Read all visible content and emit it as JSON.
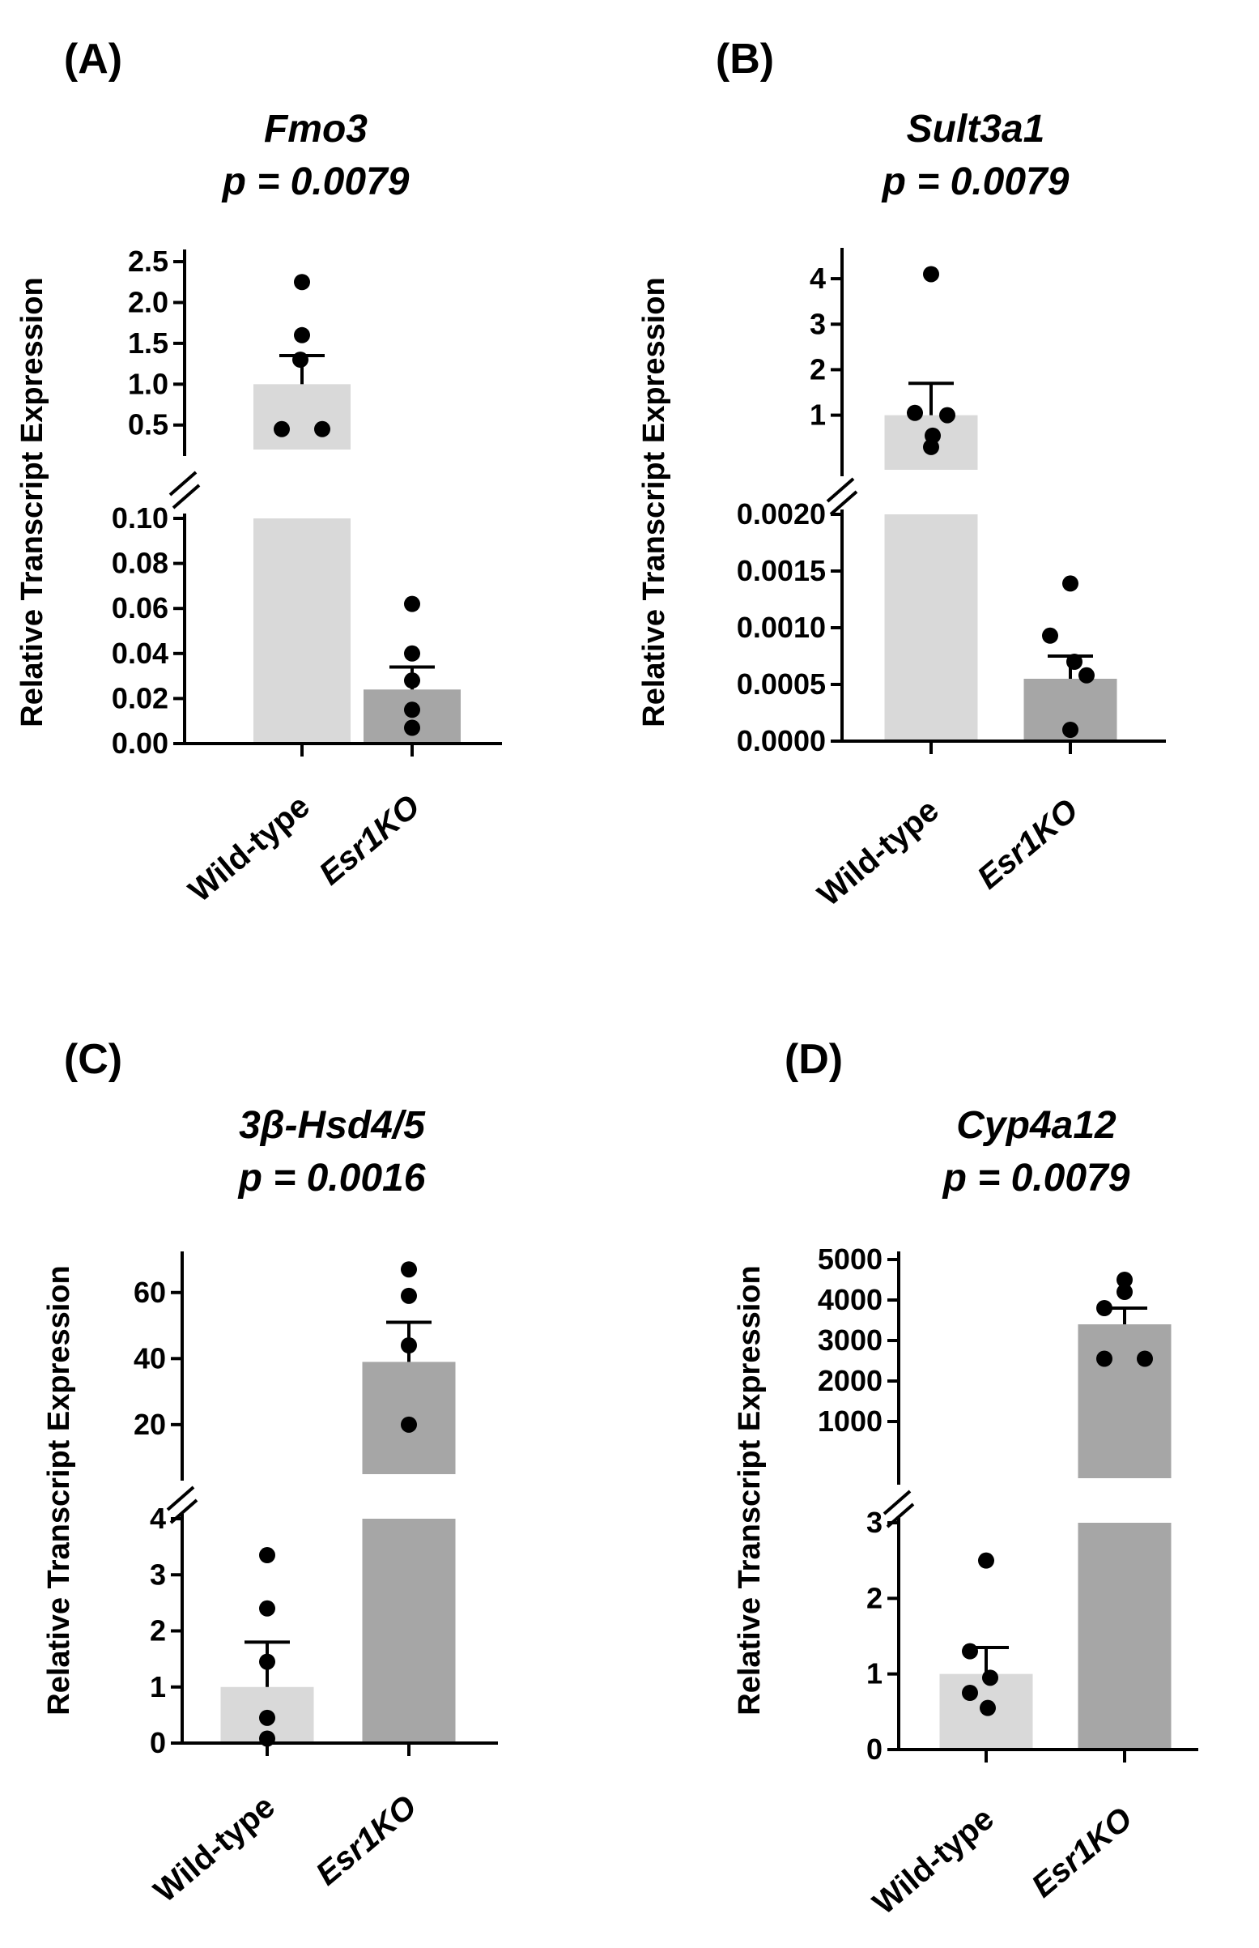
{
  "chart_data": [
    {
      "panel": "(A)",
      "type": "bar",
      "title": "Fmo3",
      "subtitle": "p = 0.0079",
      "ylabel": "Relative Transcript Expression",
      "categories": [
        "Wild-type",
        "Esr1KO"
      ],
      "category_italic": [
        false,
        true
      ],
      "values": [
        1.0,
        0.024
      ],
      "sem": [
        0.35,
        0.01
      ],
      "bar_colors": [
        "#d9d9d9",
        "#a6a6a6"
      ],
      "points": [
        [
          2.25,
          1.6,
          1.3,
          0.45,
          0.45
        ],
        [
          0.062,
          0.04,
          0.028,
          0.015,
          0.007
        ]
      ],
      "broken_axis": {
        "lower": {
          "ylim": [
            0,
            0.1
          ],
          "ticks": [
            "0.00",
            "0.02",
            "0.04",
            "0.06",
            "0.08",
            "0.10"
          ]
        },
        "upper": {
          "ylim": [
            0.2,
            2.55
          ],
          "ticks": [
            "0.5",
            "1.0",
            "1.5",
            "2.0",
            "2.5"
          ]
        }
      }
    },
    {
      "panel": "(B)",
      "type": "bar",
      "title": "Sult3a1",
      "subtitle": "p = 0.0079",
      "ylabel": "Relative Transcript Expression",
      "categories": [
        "Wild-type",
        "Esr1KO"
      ],
      "category_italic": [
        false,
        true
      ],
      "values": [
        1.0,
        0.00055
      ],
      "sem": [
        0.7,
        0.0002
      ],
      "bar_colors": [
        "#d9d9d9",
        "#a6a6a6"
      ],
      "points": [
        [
          4.1,
          1.05,
          1.0,
          0.55,
          0.3
        ],
        [
          0.00139,
          0.00093,
          0.0007,
          0.00058,
          0.0001
        ]
      ],
      "broken_axis": {
        "lower": {
          "ylim": [
            0,
            0.002
          ],
          "ticks": [
            "0.0000",
            "0.0005",
            "0.0010",
            "0.0015",
            "0.0020"
          ]
        },
        "upper": {
          "ylim": [
            -0.2,
            4.5
          ],
          "ticks": [
            "1",
            "2",
            "3",
            "4"
          ]
        }
      }
    },
    {
      "panel": "(C)",
      "type": "bar",
      "title": "3β-Hsd4/5",
      "subtitle": "p = 0.0016",
      "ylabel": "Relative Transcript Expression",
      "categories": [
        "Wild-type",
        "Esr1KO"
      ],
      "category_italic": [
        false,
        true
      ],
      "values": [
        1.0,
        39
      ],
      "sem": [
        0.8,
        12
      ],
      "bar_colors": [
        "#d9d9d9",
        "#a6a6a6"
      ],
      "points": [
        [
          3.35,
          2.4,
          1.45,
          0.45,
          0.08
        ],
        [
          67,
          59,
          44,
          20
        ]
      ],
      "broken_axis": {
        "lower": {
          "ylim": [
            0,
            4
          ],
          "ticks": [
            "0",
            "1",
            "2",
            "3",
            "4"
          ]
        },
        "upper": {
          "ylim": [
            5,
            70
          ],
          "ticks": [
            "20",
            "40",
            "60"
          ]
        }
      }
    },
    {
      "panel": "(D)",
      "type": "bar",
      "title": "Cyp4a12",
      "subtitle": "p = 0.0079",
      "ylabel": "Relative Transcript Expression",
      "categories": [
        "Wild-type",
        "Esr1KO"
      ],
      "category_italic": [
        false,
        true
      ],
      "values": [
        1.0,
        3400
      ],
      "sem": [
        0.35,
        400
      ],
      "bar_colors": [
        "#d9d9d9",
        "#a6a6a6"
      ],
      "points": [
        [
          2.5,
          1.3,
          0.95,
          0.75,
          0.55
        ],
        [
          4500,
          4200,
          3800,
          2550,
          2550
        ]
      ],
      "broken_axis": {
        "lower": {
          "ylim": [
            0,
            3
          ],
          "ticks": [
            "0",
            "1",
            "2",
            "3"
          ]
        },
        "upper": {
          "ylim": [
            -400,
            5000
          ],
          "ticks": [
            "1000",
            "2000",
            "3000",
            "4000",
            "5000"
          ]
        }
      }
    }
  ]
}
